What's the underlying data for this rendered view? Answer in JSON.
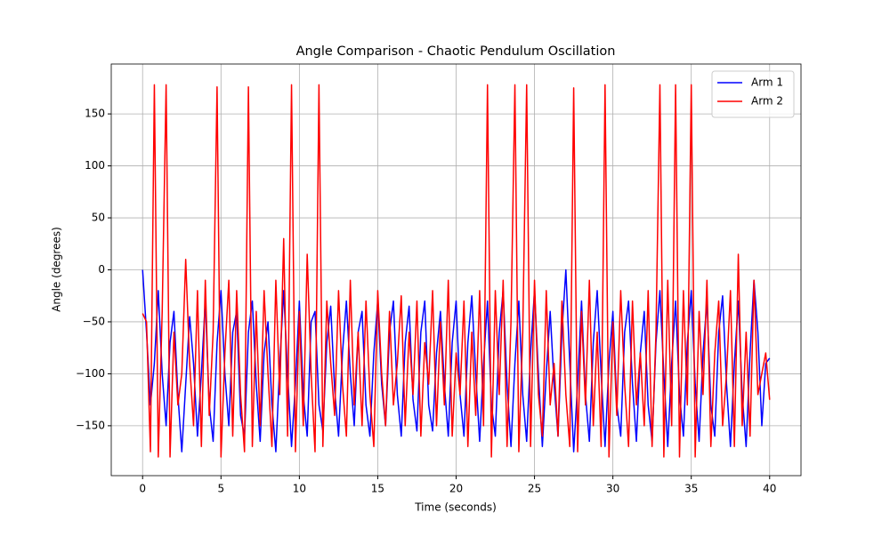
{
  "chart_data": {
    "type": "line",
    "title": "Angle Comparison - Chaotic Pendulum Oscillation",
    "x_label": "Time (seconds)",
    "y_label": "Angle (degrees)",
    "x": [
      0,
      0.25,
      0.5,
      0.75,
      1,
      1.25,
      1.5,
      1.75,
      2,
      2.25,
      2.5,
      2.75,
      3,
      3.25,
      3.5,
      3.75,
      4,
      4.25,
      4.5,
      4.75,
      5,
      5.25,
      5.5,
      5.75,
      6,
      6.25,
      6.5,
      6.75,
      7,
      7.25,
      7.5,
      7.75,
      8,
      8.25,
      8.5,
      8.75,
      9,
      9.25,
      9.5,
      9.75,
      10,
      10.25,
      10.5,
      10.75,
      11,
      11.25,
      11.5,
      11.75,
      12,
      12.25,
      12.5,
      12.75,
      13,
      13.25,
      13.5,
      13.75,
      14,
      14.25,
      14.5,
      14.75,
      15,
      15.25,
      15.5,
      15.75,
      16,
      16.25,
      16.5,
      16.75,
      17,
      17.25,
      17.5,
      17.75,
      18,
      18.25,
      18.5,
      18.75,
      19,
      19.25,
      19.5,
      19.75,
      20,
      20.25,
      20.5,
      20.75,
      21,
      21.25,
      21.5,
      21.75,
      22,
      22.25,
      22.5,
      22.75,
      23,
      23.25,
      23.5,
      23.75,
      24,
      24.25,
      24.5,
      24.75,
      25,
      25.25,
      25.5,
      25.75,
      26,
      26.25,
      26.5,
      26.75,
      27,
      27.25,
      27.5,
      27.75,
      28,
      28.25,
      28.5,
      28.75,
      29,
      29.25,
      29.5,
      29.75,
      30,
      30.25,
      30.5,
      30.75,
      31,
      31.25,
      31.5,
      31.75,
      32,
      32.25,
      32.5,
      32.75,
      33,
      33.25,
      33.5,
      33.75,
      34,
      34.25,
      34.5,
      34.75,
      35,
      35.25,
      35.5,
      35.75,
      36,
      36.25,
      36.5,
      36.75,
      37,
      37.25,
      37.5,
      37.75,
      38,
      38.25,
      38.5,
      38.75,
      39,
      39.25,
      39.5,
      39.75,
      40
    ],
    "series": [
      {
        "name": "Arm 1",
        "color": "#0000ff",
        "values": [
          0,
          -60,
          -130,
          -90,
          -20,
          -100,
          -150,
          -70,
          -40,
          -120,
          -175,
          -110,
          -45,
          -90,
          -160,
          -100,
          -30,
          -130,
          -165,
          -70,
          -20,
          -100,
          -150,
          -60,
          -40,
          -140,
          -160,
          -60,
          -30,
          -110,
          -165,
          -80,
          -50,
          -130,
          -175,
          -90,
          -20,
          -100,
          -170,
          -110,
          -30,
          -120,
          -160,
          -50,
          -40,
          -130,
          -155,
          -70,
          -35,
          -115,
          -160,
          -80,
          -30,
          -100,
          -150,
          -60,
          -40,
          -130,
          -160,
          -80,
          -30,
          -110,
          -150,
          -60,
          -30,
          -120,
          -160,
          -70,
          -35,
          -125,
          -155,
          -60,
          -30,
          -130,
          -155,
          -80,
          -40,
          -110,
          -160,
          -70,
          -30,
          -120,
          -160,
          -70,
          -25,
          -100,
          -165,
          -90,
          -30,
          -130,
          -160,
          -60,
          -20,
          -110,
          -170,
          -90,
          -30,
          -120,
          -165,
          -80,
          -20,
          -100,
          -170,
          -100,
          -40,
          -110,
          -160,
          -60,
          0,
          -90,
          -175,
          -110,
          -30,
          -120,
          -165,
          -70,
          -20,
          -100,
          -170,
          -90,
          -40,
          -130,
          -160,
          -60,
          -30,
          -110,
          -165,
          -80,
          -40,
          -130,
          -165,
          -70,
          -20,
          -100,
          -170,
          -90,
          -30,
          -120,
          -160,
          -70,
          -20,
          -110,
          -165,
          -80,
          -30,
          -130,
          -160,
          -60,
          -25,
          -110,
          -170,
          -90,
          -30,
          -120,
          -170,
          -80,
          -10,
          -60,
          -150,
          -90,
          -85
        ]
      },
      {
        "name": "Arm 2",
        "color": "#ff0000",
        "values": [
          -42,
          -50,
          -175,
          178,
          -180,
          -40,
          178,
          -180,
          -60,
          -130,
          -100,
          10,
          -90,
          -150,
          -20,
          -170,
          -10,
          -140,
          -60,
          176,
          -180,
          -80,
          -10,
          -160,
          -20,
          -120,
          -175,
          176,
          -170,
          -40,
          -150,
          -20,
          -100,
          -170,
          -10,
          -120,
          30,
          -160,
          178,
          -175,
          -40,
          -150,
          15,
          -100,
          -175,
          178,
          -170,
          -30,
          -90,
          -140,
          -20,
          -110,
          -160,
          -10,
          -130,
          -60,
          -150,
          -30,
          -120,
          -170,
          -20,
          -100,
          -150,
          -40,
          -130,
          -90,
          -25,
          -150,
          -60,
          -120,
          -30,
          -160,
          -70,
          -110,
          -20,
          -150,
          -50,
          -130,
          -10,
          -160,
          -80,
          -120,
          -30,
          -170,
          -60,
          -140,
          -20,
          -150,
          178,
          -180,
          -20,
          -120,
          -10,
          -170,
          -50,
          178,
          -175,
          -60,
          178,
          -170,
          -10,
          -120,
          -160,
          -20,
          -130,
          -90,
          -160,
          -30,
          -120,
          -170,
          175,
          -175,
          -40,
          -130,
          -10,
          -150,
          -60,
          -170,
          178,
          -180,
          -50,
          -140,
          -20,
          -110,
          -170,
          -30,
          -130,
          -80,
          -150,
          -20,
          -170,
          -60,
          178,
          -180,
          -10,
          -150,
          178,
          -180,
          -20,
          -130,
          178,
          -180,
          -40,
          -120,
          -10,
          -170,
          -80,
          -30,
          -150,
          -100,
          -20,
          -170,
          15,
          -150,
          -60,
          -160,
          -10,
          -120,
          -100,
          -80,
          -125
        ]
      }
    ],
    "xlim": [
      -2,
      42
    ],
    "xticks": [
      0,
      5,
      10,
      15,
      20,
      25,
      30,
      35,
      40
    ],
    "ylim": [
      -198,
      198
    ],
    "yticks": [
      {
        "value": -150,
        "label": "−150"
      },
      {
        "value": -100,
        "label": "−100"
      },
      {
        "value": -50,
        "label": "−50"
      },
      0,
      50,
      100,
      150
    ],
    "grid": true,
    "legend": "upper right"
  }
}
